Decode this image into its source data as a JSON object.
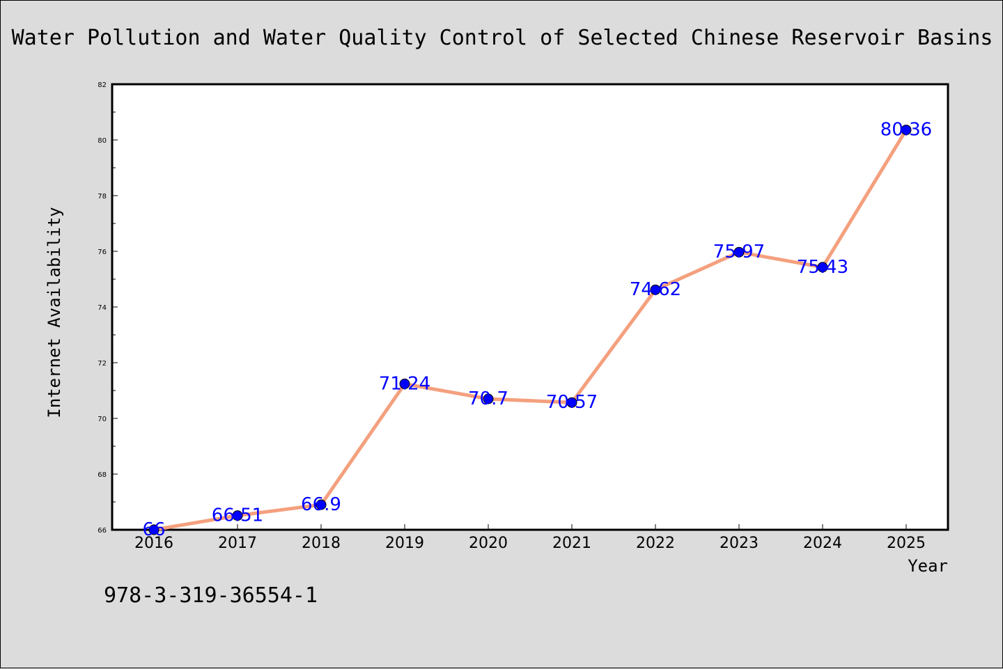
{
  "chart_data": {
    "type": "line",
    "title": "Water Pollution and Water Quality Control of Selected Chinese Reservoir Basins",
    "xlabel": "Year",
    "ylabel": "Internet Availability",
    "categories": [
      "2016",
      "2017",
      "2018",
      "2019",
      "2020",
      "2021",
      "2022",
      "2023",
      "2024",
      "2025"
    ],
    "values": [
      66,
      66.51,
      66.9,
      71.24,
      70.7,
      70.57,
      74.62,
      75.97,
      75.43,
      80.36
    ],
    "data_labels": [
      "66",
      "66.51",
      "66.9",
      "71.24",
      "70.7",
      "70.57",
      "74.62",
      "75.97",
      "75.43",
      "80.36"
    ],
    "ylim": [
      66,
      82
    ],
    "yticks": [
      "66",
      "68",
      "70",
      "72",
      "74",
      "76",
      "78",
      "80",
      "82"
    ],
    "grid": false,
    "line_color": "#f4a07e",
    "marker_color": "#0000ff",
    "label_color": "#0000ff",
    "background": "#dcdcdc",
    "plot_background": "#ffffff"
  },
  "footer": {
    "note": "978-3-319-36554-1"
  }
}
